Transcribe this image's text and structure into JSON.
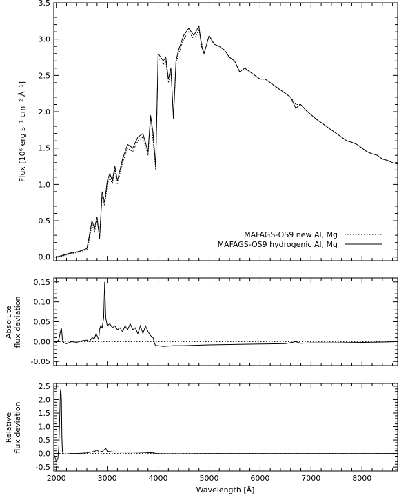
{
  "figure": {
    "xlabel": "Wavelength [Å]"
  },
  "chart_data": [
    {
      "type": "line",
      "panel": "top",
      "ylabel": "Flux [10⁶ erg s⁻¹ cm⁻² Å⁻¹]",
      "xlim": [
        1950,
        8700
      ],
      "ylim": [
        -0.05,
        3.5
      ],
      "xticks": [
        2000,
        3000,
        4000,
        5000,
        6000,
        7000,
        8000
      ],
      "yticks": [
        0.0,
        0.5,
        1.0,
        1.5,
        2.0,
        2.5,
        3.0,
        3.5
      ],
      "ytick_labels": [
        "0.0",
        "0.5",
        "1.0",
        "1.5",
        "2.0",
        "2.5",
        "3.0",
        "3.5"
      ],
      "legend_position": "bottom-right",
      "series": [
        {
          "name": "MAFAGS-OS9 new Al, Mg",
          "style": "dotted",
          "x": [
            2000,
            2100,
            2200,
            2300,
            2400,
            2500,
            2600,
            2650,
            2700,
            2750,
            2800,
            2850,
            2900,
            2950,
            3000,
            3050,
            3100,
            3150,
            3200,
            3300,
            3400,
            3500,
            3600,
            3700,
            3800,
            3850,
            3900,
            3950,
            4000,
            4050,
            4100,
            4150,
            4200,
            4250,
            4300,
            4350,
            4400,
            4500,
            4600,
            4700,
            4800,
            4850,
            4900,
            5000,
            5100,
            5200,
            5300,
            5400,
            5500,
            5600,
            5700,
            5800,
            5900,
            6000,
            6100,
            6200,
            6300,
            6400,
            6500,
            6600,
            6700,
            6800,
            6900,
            7000,
            7100,
            7200,
            7300,
            7400,
            7500,
            7600,
            7700,
            7800,
            7900,
            8000,
            8100,
            8200,
            8300,
            8400,
            8500,
            8600,
            8700
          ],
          "y": [
            0.0,
            0.01,
            0.03,
            0.05,
            0.06,
            0.08,
            0.1,
            0.25,
            0.45,
            0.35,
            0.5,
            0.3,
            0.85,
            0.7,
            1.0,
            1.1,
            1.0,
            1.2,
            1.0,
            1.3,
            1.5,
            1.45,
            1.6,
            1.65,
            1.4,
            1.9,
            1.6,
            1.2,
            2.75,
            2.7,
            2.65,
            2.7,
            2.4,
            2.55,
            1.95,
            2.65,
            2.8,
            3.0,
            3.1,
            3.0,
            3.12,
            2.95,
            2.8,
            3.05,
            2.92,
            2.9,
            2.85,
            2.75,
            2.7,
            2.55,
            2.6,
            2.55,
            2.5,
            2.45,
            2.45,
            2.4,
            2.35,
            2.3,
            2.25,
            2.2,
            2.1,
            2.1,
            2.02,
            1.96,
            1.9,
            1.85,
            1.8,
            1.75,
            1.7,
            1.65,
            1.6,
            1.58,
            1.55,
            1.5,
            1.45,
            1.42,
            1.4,
            1.35,
            1.33,
            1.3,
            1.28
          ]
        },
        {
          "name": "MAFAGS-OS9 hydrogenic Al, Mg",
          "style": "solid",
          "x": [
            2000,
            2100,
            2200,
            2300,
            2400,
            2500,
            2600,
            2650,
            2700,
            2750,
            2800,
            2850,
            2900,
            2950,
            3000,
            3050,
            3100,
            3150,
            3200,
            3300,
            3400,
            3500,
            3600,
            3700,
            3800,
            3850,
            3900,
            3950,
            4000,
            4050,
            4100,
            4150,
            4200,
            4250,
            4300,
            4350,
            4400,
            4500,
            4600,
            4700,
            4800,
            4850,
            4900,
            5000,
            5100,
            5200,
            5300,
            5400,
            5500,
            5600,
            5700,
            5800,
            5900,
            6000,
            6100,
            6200,
            6300,
            6400,
            6500,
            6600,
            6700,
            6800,
            6900,
            7000,
            7100,
            7200,
            7300,
            7400,
            7500,
            7600,
            7700,
            7800,
            7900,
            8000,
            8100,
            8200,
            8300,
            8400,
            8500,
            8600,
            8700
          ],
          "y": [
            0.0,
            0.02,
            0.04,
            0.06,
            0.07,
            0.09,
            0.12,
            0.3,
            0.5,
            0.4,
            0.55,
            0.25,
            0.9,
            0.75,
            1.05,
            1.15,
            1.05,
            1.25,
            1.05,
            1.35,
            1.55,
            1.5,
            1.65,
            1.7,
            1.45,
            1.95,
            1.7,
            1.25,
            2.8,
            2.75,
            2.7,
            2.75,
            2.45,
            2.6,
            1.9,
            2.7,
            2.85,
            3.05,
            3.15,
            3.05,
            3.18,
            2.9,
            2.8,
            3.05,
            2.93,
            2.9,
            2.85,
            2.75,
            2.7,
            2.55,
            2.6,
            2.55,
            2.5,
            2.45,
            2.45,
            2.4,
            2.35,
            2.3,
            2.25,
            2.2,
            2.05,
            2.1,
            2.02,
            1.96,
            1.9,
            1.85,
            1.8,
            1.75,
            1.7,
            1.65,
            1.6,
            1.58,
            1.55,
            1.5,
            1.45,
            1.42,
            1.4,
            1.35,
            1.33,
            1.3,
            1.28
          ]
        }
      ]
    },
    {
      "type": "line",
      "panel": "middle",
      "ylabel_line1": "Absolute",
      "ylabel_line2": "flux deviation",
      "xlim": [
        1950,
        8700
      ],
      "ylim": [
        -0.06,
        0.16
      ],
      "xticks": [
        2000,
        3000,
        4000,
        5000,
        6000,
        7000,
        8000
      ],
      "yticks": [
        -0.05,
        0.0,
        0.05,
        0.1,
        0.15
      ],
      "ytick_labels": [
        "-0.05",
        "0.00",
        "0.05",
        "0.10",
        "0.15"
      ],
      "reference_line": 0.0,
      "series": [
        {
          "style": "solid",
          "x": [
            1950,
            2000,
            2050,
            2080,
            2100,
            2120,
            2150,
            2200,
            2300,
            2400,
            2500,
            2600,
            2650,
            2700,
            2750,
            2780,
            2800,
            2830,
            2850,
            2870,
            2900,
            2930,
            2950,
            2970,
            3000,
            3050,
            3100,
            3150,
            3200,
            3250,
            3300,
            3350,
            3400,
            3450,
            3500,
            3550,
            3600,
            3650,
            3700,
            3750,
            3800,
            3850,
            3900,
            3930,
            3950,
            4000,
            4100,
            4300,
            4500,
            5000,
            5500,
            6000,
            6500,
            6700,
            6800,
            7000,
            7500,
            8000,
            8500,
            8700
          ],
          "y": [
            0.0,
            -0.002,
            0.005,
            0.025,
            0.035,
            0.005,
            -0.003,
            -0.005,
            0.0,
            -0.002,
            0.002,
            0.004,
            0.0,
            0.01,
            0.008,
            0.02,
            0.015,
            0.005,
            0.03,
            0.04,
            0.035,
            0.06,
            0.15,
            0.06,
            0.04,
            0.045,
            0.035,
            0.04,
            0.03,
            0.035,
            0.025,
            0.04,
            0.03,
            0.045,
            0.03,
            0.035,
            0.02,
            0.04,
            0.02,
            0.04,
            0.025,
            0.015,
            0.01,
            -0.005,
            -0.01,
            -0.01,
            -0.012,
            -0.01,
            -0.01,
            -0.008,
            -0.007,
            -0.006,
            -0.005,
            0.0,
            -0.004,
            -0.003,
            -0.003,
            -0.002,
            -0.001,
            0.0
          ]
        }
      ]
    },
    {
      "type": "line",
      "panel": "bottom",
      "ylabel_line1": "Relative",
      "ylabel_line2": "flux deviation",
      "xlim": [
        1950,
        8700
      ],
      "ylim": [
        -0.65,
        2.6
      ],
      "xticks": [
        2000,
        3000,
        4000,
        5000,
        6000,
        7000,
        8000
      ],
      "xtick_labels": [
        "2000",
        "3000",
        "4000",
        "5000",
        "6000",
        "7000",
        "8000"
      ],
      "yticks": [
        -0.5,
        0.0,
        0.5,
        1.0,
        1.5,
        2.0,
        2.5
      ],
      "ytick_labels": [
        "-0.5",
        "0.0",
        "0.5",
        "1.0",
        "1.5",
        "2.0",
        "2.5"
      ],
      "reference_line": 0.0,
      "series": [
        {
          "style": "solid",
          "x": [
            1950,
            2000,
            2030,
            2050,
            2070,
            2080,
            2090,
            2100,
            2110,
            2120,
            2150,
            2200,
            2300,
            2400,
            2500,
            2600,
            2700,
            2750,
            2800,
            2850,
            2900,
            2950,
            2970,
            3000,
            3100,
            3300,
            3500,
            3700,
            3900,
            4000,
            4500,
            5000,
            6000,
            7000,
            8000,
            8700
          ],
          "y": [
            0.0,
            -0.3,
            -0.2,
            0.3,
            1.6,
            2.3,
            2.4,
            2.0,
            0.6,
            0.05,
            -0.02,
            -0.02,
            0.0,
            0.0,
            0.01,
            0.02,
            0.06,
            0.08,
            0.12,
            0.05,
            0.08,
            0.15,
            0.2,
            0.08,
            0.06,
            0.05,
            0.05,
            0.04,
            0.02,
            -0.01,
            -0.01,
            -0.005,
            -0.004,
            -0.003,
            -0.002,
            0.0
          ]
        }
      ]
    }
  ]
}
